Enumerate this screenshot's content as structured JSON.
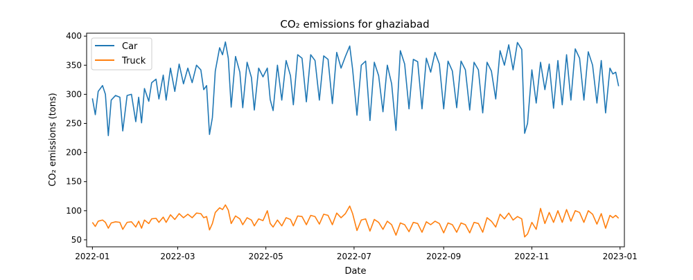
{
  "chart_data": {
    "type": "line",
    "title": "CO₂ emissions for ghaziabad",
    "xlabel": "Date",
    "ylabel": "CO₂ emissions (tons)",
    "x_range": [
      "2021-12-28",
      "2023-01-04"
    ],
    "ylim": [
      38,
      405
    ],
    "x_ticks": [
      {
        "date": "2022-01-01",
        "label": "2022-01"
      },
      {
        "date": "2022-03-01",
        "label": "2022-03"
      },
      {
        "date": "2022-05-01",
        "label": "2022-05"
      },
      {
        "date": "2022-07-01",
        "label": "2022-07"
      },
      {
        "date": "2022-09-01",
        "label": "2022-09"
      },
      {
        "date": "2022-11-01",
        "label": "2022-11"
      },
      {
        "date": "2023-01-01",
        "label": "2023-01"
      }
    ],
    "y_ticks": [
      {
        "value": 50,
        "label": "50"
      },
      {
        "value": 100,
        "label": "100"
      },
      {
        "value": 150,
        "label": "150"
      },
      {
        "value": 200,
        "label": "200"
      },
      {
        "value": 250,
        "label": "250"
      },
      {
        "value": 300,
        "label": "300"
      },
      {
        "value": 350,
        "label": "350"
      },
      {
        "value": 400,
        "label": "400"
      }
    ],
    "grid": false,
    "legend_position": "top-left",
    "series": [
      {
        "name": "Car",
        "color": "#1f77b4",
        "points": [
          [
            "2022-01-01",
            293
          ],
          [
            "2022-01-03",
            265
          ],
          [
            "2022-01-05",
            305
          ],
          [
            "2022-01-08",
            315
          ],
          [
            "2022-01-10",
            300
          ],
          [
            "2022-01-12",
            229
          ],
          [
            "2022-01-14",
            290
          ],
          [
            "2022-01-17",
            298
          ],
          [
            "2022-01-20",
            295
          ],
          [
            "2022-01-22",
            237
          ],
          [
            "2022-01-25",
            298
          ],
          [
            "2022-01-28",
            300
          ],
          [
            "2022-01-31",
            253
          ],
          [
            "2022-02-02",
            295
          ],
          [
            "2022-02-04",
            251
          ],
          [
            "2022-02-06",
            310
          ],
          [
            "2022-02-09",
            288
          ],
          [
            "2022-02-11",
            320
          ],
          [
            "2022-02-14",
            326
          ],
          [
            "2022-02-16",
            292
          ],
          [
            "2022-02-19",
            333
          ],
          [
            "2022-02-21",
            290
          ],
          [
            "2022-02-24",
            345
          ],
          [
            "2022-02-27",
            305
          ],
          [
            "2022-03-02",
            352
          ],
          [
            "2022-03-05",
            318
          ],
          [
            "2022-03-08",
            345
          ],
          [
            "2022-03-11",
            320
          ],
          [
            "2022-03-14",
            350
          ],
          [
            "2022-03-17",
            342
          ],
          [
            "2022-03-19",
            308
          ],
          [
            "2022-03-21",
            315
          ],
          [
            "2022-03-23",
            231
          ],
          [
            "2022-03-25",
            260
          ],
          [
            "2022-03-27",
            340
          ],
          [
            "2022-03-30",
            380
          ],
          [
            "2022-04-01",
            368
          ],
          [
            "2022-04-03",
            390
          ],
          [
            "2022-04-05",
            362
          ],
          [
            "2022-04-07",
            278
          ],
          [
            "2022-04-10",
            365
          ],
          [
            "2022-04-13",
            338
          ],
          [
            "2022-04-15",
            277
          ],
          [
            "2022-04-18",
            355
          ],
          [
            "2022-04-21",
            329
          ],
          [
            "2022-04-23",
            273
          ],
          [
            "2022-04-26",
            345
          ],
          [
            "2022-04-29",
            330
          ],
          [
            "2022-05-02",
            345
          ],
          [
            "2022-05-04",
            291
          ],
          [
            "2022-05-06",
            272
          ],
          [
            "2022-05-09",
            350
          ],
          [
            "2022-05-12",
            290
          ],
          [
            "2022-05-15",
            358
          ],
          [
            "2022-05-18",
            332
          ],
          [
            "2022-05-20",
            282
          ],
          [
            "2022-05-23",
            368
          ],
          [
            "2022-05-26",
            362
          ],
          [
            "2022-05-29",
            287
          ],
          [
            "2022-06-01",
            368
          ],
          [
            "2022-06-04",
            358
          ],
          [
            "2022-06-07",
            290
          ],
          [
            "2022-06-10",
            366
          ],
          [
            "2022-06-13",
            360
          ],
          [
            "2022-06-16",
            284
          ],
          [
            "2022-06-19",
            372
          ],
          [
            "2022-06-22",
            345
          ],
          [
            "2022-06-25",
            365
          ],
          [
            "2022-06-28",
            383
          ],
          [
            "2022-06-30",
            343
          ],
          [
            "2022-07-03",
            264
          ],
          [
            "2022-07-06",
            350
          ],
          [
            "2022-07-09",
            357
          ],
          [
            "2022-07-12",
            255
          ],
          [
            "2022-07-15",
            355
          ],
          [
            "2022-07-18",
            332
          ],
          [
            "2022-07-21",
            270
          ],
          [
            "2022-07-24",
            350
          ],
          [
            "2022-07-27",
            318
          ],
          [
            "2022-07-30",
            238
          ],
          [
            "2022-08-02",
            375
          ],
          [
            "2022-08-05",
            352
          ],
          [
            "2022-08-08",
            275
          ],
          [
            "2022-08-11",
            360
          ],
          [
            "2022-08-14",
            356
          ],
          [
            "2022-08-17",
            275
          ],
          [
            "2022-08-20",
            362
          ],
          [
            "2022-08-23",
            338
          ],
          [
            "2022-08-26",
            372
          ],
          [
            "2022-08-29",
            352
          ],
          [
            "2022-09-01",
            275
          ],
          [
            "2022-09-04",
            357
          ],
          [
            "2022-09-07",
            340
          ],
          [
            "2022-09-10",
            277
          ],
          [
            "2022-09-13",
            357
          ],
          [
            "2022-09-16",
            342
          ],
          [
            "2022-09-19",
            273
          ],
          [
            "2022-09-22",
            355
          ],
          [
            "2022-09-25",
            342
          ],
          [
            "2022-09-28",
            268
          ],
          [
            "2022-10-01",
            355
          ],
          [
            "2022-10-04",
            340
          ],
          [
            "2022-10-07",
            292
          ],
          [
            "2022-10-10",
            375
          ],
          [
            "2022-10-13",
            350
          ],
          [
            "2022-10-16",
            385
          ],
          [
            "2022-10-19",
            342
          ],
          [
            "2022-10-22",
            389
          ],
          [
            "2022-10-25",
            377
          ],
          [
            "2022-10-27",
            233
          ],
          [
            "2022-10-29",
            250
          ],
          [
            "2022-11-01",
            342
          ],
          [
            "2022-11-04",
            285
          ],
          [
            "2022-11-07",
            355
          ],
          [
            "2022-11-10",
            308
          ],
          [
            "2022-11-13",
            352
          ],
          [
            "2022-11-16",
            276
          ],
          [
            "2022-11-19",
            358
          ],
          [
            "2022-11-22",
            282
          ],
          [
            "2022-11-25",
            368
          ],
          [
            "2022-11-28",
            290
          ],
          [
            "2022-12-01",
            378
          ],
          [
            "2022-12-04",
            362
          ],
          [
            "2022-12-07",
            290
          ],
          [
            "2022-12-10",
            373
          ],
          [
            "2022-12-13",
            350
          ],
          [
            "2022-12-16",
            285
          ],
          [
            "2022-12-19",
            358
          ],
          [
            "2022-12-22",
            268
          ],
          [
            "2022-12-25",
            345
          ],
          [
            "2022-12-27",
            335
          ],
          [
            "2022-12-29",
            338
          ],
          [
            "2022-12-31",
            314
          ]
        ]
      },
      {
        "name": "Truck",
        "color": "#ff7f0e",
        "points": [
          [
            "2022-01-01",
            80
          ],
          [
            "2022-01-03",
            73
          ],
          [
            "2022-01-05",
            82
          ],
          [
            "2022-01-08",
            84
          ],
          [
            "2022-01-10",
            80
          ],
          [
            "2022-01-12",
            70
          ],
          [
            "2022-01-14",
            79
          ],
          [
            "2022-01-17",
            81
          ],
          [
            "2022-01-20",
            80
          ],
          [
            "2022-01-22",
            68
          ],
          [
            "2022-01-25",
            80
          ],
          [
            "2022-01-28",
            81
          ],
          [
            "2022-01-31",
            72
          ],
          [
            "2022-02-02",
            82
          ],
          [
            "2022-02-04",
            70
          ],
          [
            "2022-02-06",
            84
          ],
          [
            "2022-02-09",
            78
          ],
          [
            "2022-02-11",
            86
          ],
          [
            "2022-02-14",
            87
          ],
          [
            "2022-02-16",
            80
          ],
          [
            "2022-02-19",
            89
          ],
          [
            "2022-02-21",
            80
          ],
          [
            "2022-02-24",
            93
          ],
          [
            "2022-02-27",
            85
          ],
          [
            "2022-03-02",
            95
          ],
          [
            "2022-03-05",
            88
          ],
          [
            "2022-03-08",
            94
          ],
          [
            "2022-03-11",
            88
          ],
          [
            "2022-03-14",
            96
          ],
          [
            "2022-03-17",
            95
          ],
          [
            "2022-03-19",
            88
          ],
          [
            "2022-03-21",
            90
          ],
          [
            "2022-03-23",
            67
          ],
          [
            "2022-03-25",
            78
          ],
          [
            "2022-03-27",
            97
          ],
          [
            "2022-03-30",
            105
          ],
          [
            "2022-04-01",
            102
          ],
          [
            "2022-04-03",
            110
          ],
          [
            "2022-04-05",
            101
          ],
          [
            "2022-04-07",
            78
          ],
          [
            "2022-04-10",
            91
          ],
          [
            "2022-04-13",
            86
          ],
          [
            "2022-04-15",
            76
          ],
          [
            "2022-04-18",
            88
          ],
          [
            "2022-04-21",
            84
          ],
          [
            "2022-04-23",
            74
          ],
          [
            "2022-04-26",
            86
          ],
          [
            "2022-04-29",
            83
          ],
          [
            "2022-05-02",
            100
          ],
          [
            "2022-05-04",
            78
          ],
          [
            "2022-05-06",
            72
          ],
          [
            "2022-05-09",
            84
          ],
          [
            "2022-05-12",
            74
          ],
          [
            "2022-05-15",
            88
          ],
          [
            "2022-05-18",
            85
          ],
          [
            "2022-05-20",
            74
          ],
          [
            "2022-05-23",
            91
          ],
          [
            "2022-05-26",
            90
          ],
          [
            "2022-05-29",
            76
          ],
          [
            "2022-06-01",
            92
          ],
          [
            "2022-06-04",
            90
          ],
          [
            "2022-06-07",
            77
          ],
          [
            "2022-06-10",
            94
          ],
          [
            "2022-06-13",
            92
          ],
          [
            "2022-06-16",
            76
          ],
          [
            "2022-06-19",
            96
          ],
          [
            "2022-06-22",
            88
          ],
          [
            "2022-06-25",
            95
          ],
          [
            "2022-06-28",
            108
          ],
          [
            "2022-06-30",
            95
          ],
          [
            "2022-07-03",
            66
          ],
          [
            "2022-07-06",
            84
          ],
          [
            "2022-07-09",
            86
          ],
          [
            "2022-07-12",
            65
          ],
          [
            "2022-07-15",
            85
          ],
          [
            "2022-07-18",
            80
          ],
          [
            "2022-07-21",
            68
          ],
          [
            "2022-07-24",
            82
          ],
          [
            "2022-07-27",
            76
          ],
          [
            "2022-07-30",
            58
          ],
          [
            "2022-08-02",
            79
          ],
          [
            "2022-08-05",
            76
          ],
          [
            "2022-08-08",
            64
          ],
          [
            "2022-08-11",
            80
          ],
          [
            "2022-08-14",
            78
          ],
          [
            "2022-08-17",
            63
          ],
          [
            "2022-08-20",
            81
          ],
          [
            "2022-08-23",
            76
          ],
          [
            "2022-08-26",
            82
          ],
          [
            "2022-08-29",
            78
          ],
          [
            "2022-09-01",
            62
          ],
          [
            "2022-09-04",
            79
          ],
          [
            "2022-09-07",
            76
          ],
          [
            "2022-09-10",
            63
          ],
          [
            "2022-09-13",
            79
          ],
          [
            "2022-09-16",
            76
          ],
          [
            "2022-09-19",
            62
          ],
          [
            "2022-09-22",
            80
          ],
          [
            "2022-09-25",
            78
          ],
          [
            "2022-09-28",
            63
          ],
          [
            "2022-10-01",
            88
          ],
          [
            "2022-10-04",
            82
          ],
          [
            "2022-10-07",
            72
          ],
          [
            "2022-10-10",
            94
          ],
          [
            "2022-10-13",
            86
          ],
          [
            "2022-10-16",
            96
          ],
          [
            "2022-10-19",
            84
          ],
          [
            "2022-10-22",
            90
          ],
          [
            "2022-10-25",
            86
          ],
          [
            "2022-10-27",
            55
          ],
          [
            "2022-10-29",
            60
          ],
          [
            "2022-11-01",
            80
          ],
          [
            "2022-11-04",
            68
          ],
          [
            "2022-11-07",
            104
          ],
          [
            "2022-11-10",
            78
          ],
          [
            "2022-11-13",
            97
          ],
          [
            "2022-11-16",
            80
          ],
          [
            "2022-11-19",
            100
          ],
          [
            "2022-11-22",
            80
          ],
          [
            "2022-11-25",
            102
          ],
          [
            "2022-11-28",
            82
          ],
          [
            "2022-12-01",
            100
          ],
          [
            "2022-12-04",
            97
          ],
          [
            "2022-12-07",
            80
          ],
          [
            "2022-12-10",
            100
          ],
          [
            "2022-12-13",
            94
          ],
          [
            "2022-12-16",
            77
          ],
          [
            "2022-12-19",
            95
          ],
          [
            "2022-12-22",
            70
          ],
          [
            "2022-12-25",
            92
          ],
          [
            "2022-12-27",
            88
          ],
          [
            "2022-12-29",
            92
          ],
          [
            "2022-12-31",
            87
          ]
        ]
      }
    ]
  }
}
